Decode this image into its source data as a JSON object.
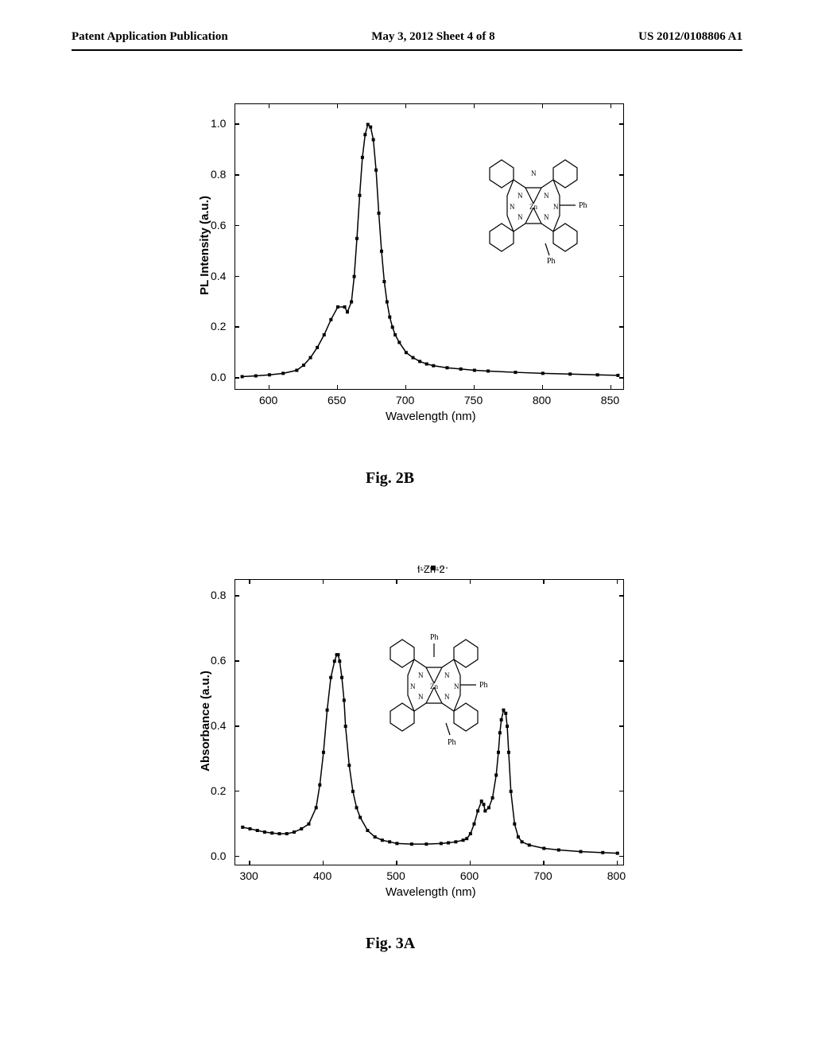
{
  "header": {
    "left": "Patent Application Publication",
    "center": "May 3, 2012  Sheet 4 of 8",
    "right": "US 2012/0108806 A1"
  },
  "figure1": {
    "caption": "Fig. 2B",
    "type": "line",
    "ylabel": "PL Intensity (a.u.)",
    "xlabel": "Wavelength (nm)",
    "xlim": [
      575,
      860
    ],
    "ylim": [
      -0.05,
      1.08
    ],
    "xticks": [
      600,
      650,
      700,
      750,
      800,
      850
    ],
    "yticks": [
      0.0,
      0.2,
      0.4,
      0.6,
      0.8,
      1.0
    ],
    "line_color": "#000000",
    "marker": "square",
    "marker_size": 4,
    "background_color": "#ffffff",
    "data": {
      "x": [
        580,
        590,
        600,
        610,
        620,
        625,
        630,
        635,
        640,
        645,
        650,
        655,
        657,
        660,
        662,
        664,
        666,
        668,
        670,
        672,
        674,
        676,
        678,
        680,
        682,
        684,
        686,
        688,
        690,
        692,
        695,
        700,
        705,
        710,
        715,
        720,
        730,
        740,
        750,
        760,
        780,
        800,
        820,
        840,
        855
      ],
      "y": [
        0.005,
        0.008,
        0.012,
        0.018,
        0.03,
        0.05,
        0.08,
        0.12,
        0.17,
        0.23,
        0.28,
        0.28,
        0.26,
        0.3,
        0.4,
        0.55,
        0.72,
        0.87,
        0.96,
        1.0,
        0.99,
        0.94,
        0.82,
        0.65,
        0.5,
        0.38,
        0.3,
        0.24,
        0.2,
        0.17,
        0.14,
        0.1,
        0.08,
        0.065,
        0.055,
        0.048,
        0.04,
        0.035,
        0.03,
        0.027,
        0.022,
        0.018,
        0.015,
        0.012,
        0.01
      ]
    },
    "molecule_labels": [
      "N",
      "N",
      "N",
      "N",
      "N",
      "N",
      "N",
      "Zn",
      "Ph",
      "Ph"
    ]
  },
  "figure2": {
    "caption": "Fig. 3A",
    "legend": "I-Zn-2",
    "type": "line",
    "ylabel": "Absorbance (a.u.)",
    "xlabel": "Wavelength (nm)",
    "xlim": [
      280,
      810
    ],
    "ylim": [
      -0.03,
      0.85
    ],
    "xticks": [
      300,
      400,
      500,
      600,
      700,
      800
    ],
    "yticks": [
      0.0,
      0.2,
      0.4,
      0.6,
      0.8
    ],
    "line_color": "#000000",
    "marker": "square",
    "marker_size": 4,
    "background_color": "#ffffff",
    "data": {
      "x": [
        290,
        300,
        310,
        320,
        330,
        340,
        350,
        360,
        370,
        380,
        390,
        395,
        400,
        405,
        410,
        415,
        418,
        420,
        422,
        425,
        428,
        430,
        435,
        440,
        445,
        450,
        460,
        470,
        480,
        490,
        500,
        520,
        540,
        560,
        570,
        580,
        590,
        595,
        600,
        605,
        610,
        615,
        618,
        620,
        625,
        630,
        635,
        638,
        640,
        642,
        645,
        648,
        650,
        652,
        655,
        660,
        665,
        670,
        680,
        700,
        720,
        750,
        780,
        800
      ],
      "y": [
        0.09,
        0.085,
        0.08,
        0.075,
        0.072,
        0.07,
        0.07,
        0.075,
        0.085,
        0.1,
        0.15,
        0.22,
        0.32,
        0.45,
        0.55,
        0.6,
        0.62,
        0.62,
        0.6,
        0.55,
        0.48,
        0.4,
        0.28,
        0.2,
        0.15,
        0.12,
        0.08,
        0.06,
        0.05,
        0.045,
        0.04,
        0.038,
        0.038,
        0.04,
        0.042,
        0.045,
        0.05,
        0.055,
        0.07,
        0.1,
        0.14,
        0.17,
        0.16,
        0.14,
        0.15,
        0.18,
        0.25,
        0.32,
        0.38,
        0.42,
        0.45,
        0.44,
        0.4,
        0.32,
        0.2,
        0.1,
        0.06,
        0.045,
        0.035,
        0.025,
        0.02,
        0.015,
        0.012,
        0.01
      ]
    },
    "molecule_labels": [
      "N",
      "N",
      "N",
      "N",
      "N",
      "N",
      "Zn",
      "Ph",
      "Ph",
      "Ph"
    ]
  },
  "colors": {
    "text": "#000000",
    "line": "#000000",
    "background": "#ffffff"
  }
}
